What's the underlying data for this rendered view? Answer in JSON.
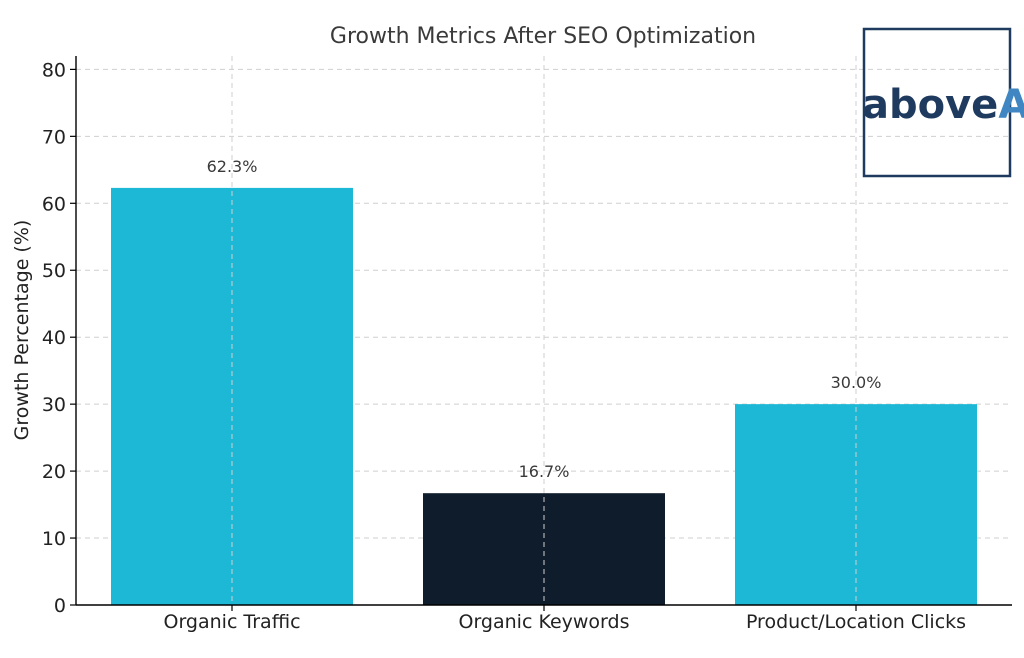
{
  "chart_data": {
    "type": "bar",
    "title": "Growth Metrics After SEO Optimization",
    "xlabel": "",
    "ylabel": "Growth Percentage (%)",
    "categories": [
      "Organic Traffic",
      "Organic Keywords",
      "Product/Location Clicks"
    ],
    "values": [
      62.3,
      16.7,
      30.0
    ],
    "data_labels": [
      "62.3%",
      "16.7%",
      "30.0%"
    ],
    "bar_colors": [
      "#1cb8d6",
      "#0f1c2b",
      "#1cb8d6"
    ],
    "ylim": [
      0,
      82
    ],
    "yticks": [
      0,
      10,
      20,
      30,
      40,
      50,
      60,
      70,
      80
    ],
    "grid": true,
    "legend": "none"
  },
  "logo": {
    "text_part1": "above",
    "text_part2": "A",
    "color_dark": "#1f3a5f",
    "color_light": "#3f86c2"
  }
}
